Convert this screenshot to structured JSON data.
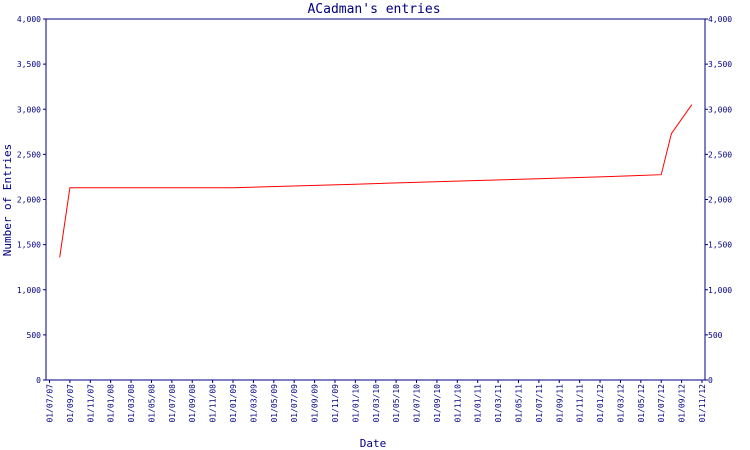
{
  "chart_data": {
    "type": "line",
    "title": "ACadman's entries",
    "xlabel": "Date",
    "ylabel": "Number of Entries",
    "ylim": [
      0,
      4000
    ],
    "y_ticks": [
      0,
      500,
      1000,
      1500,
      2000,
      2500,
      3000,
      3500,
      4000
    ],
    "y_tick_labels": [
      "0",
      "500",
      "1,000",
      "1,500",
      "2,000",
      "2,500",
      "3,000",
      "3,500",
      "4,000"
    ],
    "x_tick_labels": [
      "01/07/07",
      "01/09/07",
      "01/11/07",
      "01/01/08",
      "01/03/08",
      "01/05/08",
      "01/07/08",
      "01/09/08",
      "01/11/08",
      "01/01/09",
      "01/03/09",
      "01/05/09",
      "01/07/09",
      "01/09/09",
      "01/11/09",
      "01/01/10",
      "01/03/10",
      "01/05/10",
      "01/07/10",
      "01/09/10",
      "01/11/10",
      "01/01/11",
      "01/03/11",
      "01/05/11",
      "01/07/11",
      "01/09/11",
      "01/11/11",
      "01/01/12",
      "01/03/12",
      "01/05/12",
      "01/07/12",
      "01/09/12",
      "01/11/12"
    ],
    "grid": false,
    "series": [
      {
        "color": "#ff0000",
        "points": [
          {
            "x": "01/08/07",
            "y": 1360
          },
          {
            "x": "01/09/07",
            "y": 2130
          },
          {
            "x": "01/01/09",
            "y": 2130
          },
          {
            "x": "01/01/10",
            "y": 2170
          },
          {
            "x": "01/01/11",
            "y": 2210
          },
          {
            "x": "01/01/12",
            "y": 2250
          },
          {
            "x": "01/07/12",
            "y": 2275
          },
          {
            "x": "01/08/12",
            "y": 2730
          },
          {
            "x": "01/10/12",
            "y": 3050
          }
        ]
      }
    ]
  }
}
